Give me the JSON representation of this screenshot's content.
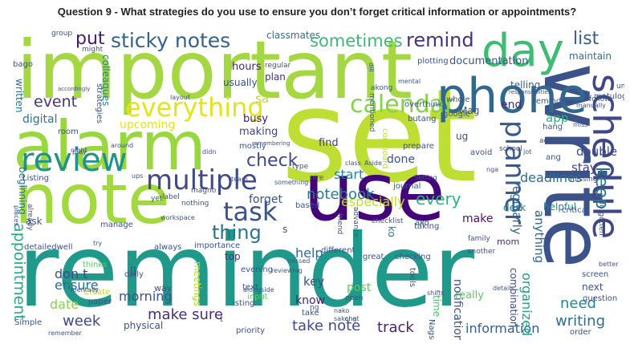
{
  "title": "Question 9 - What strategies do you use to ensure you don’t forget critical information or appointments?",
  "words": [
    {
      "text": "important",
      "color": "#a5d742"
    },
    {
      "text": "set",
      "color": "#bede33"
    },
    {
      "text": "reminder",
      "color": "#1f9a8a"
    },
    {
      "text": "alarm",
      "color": "#98d83e"
    },
    {
      "text": "note",
      "color": "#a2d93f"
    },
    {
      "text": "use",
      "color": "#44047a"
    },
    {
      "text": "write",
      "color": "#3b528b"
    },
    {
      "text": "phone",
      "color": "#31688e"
    },
    {
      "text": "schedule",
      "color": "#3f4788"
    },
    {
      "text": "day",
      "color": "#3fbc73"
    },
    {
      "text": "everything",
      "color": "#e4e41a"
    },
    {
      "text": "calendar",
      "color": "#83d34b"
    },
    {
      "text": "review",
      "color": "#21918c"
    },
    {
      "text": "multiple",
      "color": "#3e4989"
    },
    {
      "text": "task",
      "color": "#3a538b"
    },
    {
      "text": "planner",
      "color": "#38598c"
    },
    {
      "text": "sticky notes",
      "color": "#33638d"
    },
    {
      "text": "thing",
      "color": "#2c728e"
    },
    {
      "text": "remind",
      "color": "#46327e"
    },
    {
      "text": "sometimes",
      "color": "#3aba76"
    },
    {
      "text": "list",
      "color": "#355f8d"
    },
    {
      "text": "put",
      "color": "#48186a"
    },
    {
      "text": "event",
      "color": "#463480"
    },
    {
      "text": "check",
      "color": "#3e4a89"
    },
    {
      "text": "notebook",
      "color": "#287d8e"
    },
    {
      "text": "keep",
      "color": "#2a768e"
    },
    {
      "text": "every",
      "color": "#2db27d"
    },
    {
      "text": "appointment",
      "color": "#26ad81"
    },
    {
      "text": "make sure",
      "color": "#472d7b"
    },
    {
      "text": "take note",
      "color": "#3e4a89"
    },
    {
      "text": "week",
      "color": "#404688"
    },
    {
      "text": "help",
      "color": "#2f6b8e"
    },
    {
      "text": "don t",
      "color": "#3f4788"
    },
    {
      "text": "ensure",
      "color": "#2f6c8e"
    },
    {
      "text": "morning",
      "color": "#3b518b"
    },
    {
      "text": "date",
      "color": "#86d549"
    },
    {
      "text": "need",
      "color": "#23898e"
    },
    {
      "text": "writing",
      "color": "#2e6e8e"
    },
    {
      "text": "track",
      "color": "#481f70"
    },
    {
      "text": "information",
      "color": "#35608d"
    },
    {
      "text": "key",
      "color": "#3c4f8a"
    },
    {
      "text": "know",
      "color": "#482475"
    },
    {
      "text": "post",
      "color": "#5ec962"
    },
    {
      "text": "digital",
      "color": "#2a778e"
    },
    {
      "text": "upcoming",
      "color": "#e2e418"
    },
    {
      "text": "start",
      "color": "#24878e"
    },
    {
      "text": "deadlines",
      "color": "#2d708e"
    },
    {
      "text": "organized",
      "color": "#1fa287"
    },
    {
      "text": "regularly",
      "color": "#31678e"
    },
    {
      "text": "anything",
      "color": "#32658e"
    },
    {
      "text": "app",
      "color": "#29af7f"
    },
    {
      "text": "end",
      "color": "#472f7d"
    },
    {
      "text": "stay",
      "color": "#433e85"
    },
    {
      "text": "double",
      "color": "#3f4889"
    },
    {
      "text": "make",
      "color": "#481467"
    },
    {
      "text": "especially",
      "color": "#bddf26"
    },
    {
      "text": "done",
      "color": "#3b528b"
    },
    {
      "text": "forget",
      "color": "#3b518b"
    },
    {
      "text": "find",
      "color": "#443983"
    },
    {
      "text": "making",
      "color": "#414487"
    },
    {
      "text": "busy",
      "color": "#48186a"
    },
    {
      "text": "documentation",
      "color": "#3b528b"
    },
    {
      "text": "classmates",
      "color": "#2c728e"
    },
    {
      "text": "maintain",
      "color": "#2f6c8e"
    },
    {
      "text": "telling",
      "color": "#365d8d"
    },
    {
      "text": "hours",
      "color": "#482878"
    },
    {
      "text": "plan",
      "color": "#46307e"
    },
    {
      "text": "usually",
      "color": "#3c508b"
    },
    {
      "text": "colleagues",
      "color": "#26828e"
    },
    {
      "text": "written",
      "color": "#2c718e"
    },
    {
      "text": "notifications",
      "color": "#3b518b"
    },
    {
      "text": "combination",
      "color": "#3e4a89"
    },
    {
      "text": "desk",
      "color": "#2c728e"
    },
    {
      "text": "ko",
      "color": "#2e6f8e"
    },
    {
      "text": "time",
      "color": "#4ac16d"
    },
    {
      "text": "really",
      "color": "#5ec962"
    },
    {
      "text": "next",
      "color": "#3b528b"
    },
    {
      "text": "physical",
      "color": "#3b518b"
    },
    {
      "text": "meetings",
      "color": "#b5de2b"
    },
    {
      "text": "beginning",
      "color": "#2c728e"
    },
    {
      "text": "top",
      "color": "#472f7d"
    },
    {
      "text": "ll",
      "color": "#3e4989"
    },
    {
      "text": "ask",
      "color": "#3b528b"
    },
    {
      "text": "Mag",
      "color": "#3b528b"
    },
    {
      "text": "ug",
      "color": "#3b528b"
    },
    {
      "text": "helpful",
      "color": "#26828e"
    },
    {
      "text": "mom",
      "color": "#472d7b"
    },
    {
      "text": "sa",
      "color": "#b8de29"
    },
    {
      "text": "s",
      "color": "#3b528b"
    },
    {
      "text": "way",
      "color": "#3b528b"
    },
    {
      "text": "daily",
      "color": "#3b528b"
    },
    {
      "text": "manage",
      "color": "#3b528b"
    },
    {
      "text": "always",
      "color": "#3b528b"
    },
    {
      "text": "importance",
      "color": "#3b528b"
    },
    {
      "text": "detailedwell",
      "color": "#3b528b"
    },
    {
      "text": "thinks",
      "color": "#5ec962"
    },
    {
      "text": "question",
      "color": "#3b528b"
    },
    {
      "text": "screen",
      "color": "#3b528b"
    },
    {
      "text": "order",
      "color": "#3b528b"
    },
    {
      "text": "evening",
      "color": "#3b528b"
    },
    {
      "text": "checking",
      "color": "#3b528b"
    },
    {
      "text": "great",
      "color": "#3b528b"
    },
    {
      "text": "different",
      "color": "#3b528b"
    },
    {
      "text": "taking",
      "color": "#3b528b"
    },
    {
      "text": "tools",
      "color": "#3b528b"
    },
    {
      "text": "t",
      "color": "#3b528b"
    },
    {
      "text": "priority",
      "color": "#3b528b"
    },
    {
      "text": "isting",
      "color": "#3b528b"
    },
    {
      "text": "input",
      "color": "#5ec962"
    },
    {
      "text": "Create",
      "color": "#bddf26"
    },
    {
      "text": "Simple",
      "color": "#3b528b"
    },
    {
      "text": "paper",
      "color": "#3b528b"
    },
    {
      "text": "Listing",
      "color": "#3b528b"
    },
    {
      "text": "room",
      "color": "#3b528b"
    },
    {
      "text": "bago",
      "color": "#3b528b"
    },
    {
      "text": "strategies",
      "color": "#3b528b"
    },
    {
      "text": "group",
      "color": "#3b528b"
    },
    {
      "text": "might",
      "color": "#3b528b"
    },
    {
      "text": "regular",
      "color": "#3b528b"
    },
    {
      "text": "plotting",
      "color": "#3b528b"
    },
    {
      "text": "matulog",
      "color": "#3b528b"
    },
    {
      "text": "umaga",
      "color": "#3b528b"
    },
    {
      "text": "reminding",
      "color": "#3b528b"
    },
    {
      "text": "akong",
      "color": "#3b528b"
    },
    {
      "text": "mentioned",
      "color": "#3b528b"
    },
    {
      "text": "butang",
      "color": "#3b528b"
    },
    {
      "text": "overthink",
      "color": "#3b528b"
    },
    {
      "text": "whole",
      "color": "#3b528b"
    },
    {
      "text": "google",
      "color": "#3b528b"
    },
    {
      "text": "corkboard",
      "color": "#bddf26"
    },
    {
      "text": "prepare",
      "color": "#3b528b"
    },
    {
      "text": "journal",
      "color": "#3b528b"
    },
    {
      "text": "type",
      "color": "#3b528b"
    },
    {
      "text": "nire",
      "color": "#3b528b"
    },
    {
      "text": "based",
      "color": "#3b528b"
    },
    {
      "text": "friend",
      "color": "#3b528b"
    },
    {
      "text": "advance",
      "color": "#3b528b"
    },
    {
      "text": "ako",
      "color": "#3b528b"
    },
    {
      "text": "checklist",
      "color": "#3b528b"
    },
    {
      "text": "nothing",
      "color": "#3b528b"
    },
    {
      "text": "label",
      "color": "#3b528b"
    },
    {
      "text": "magno",
      "color": "#3b528b"
    },
    {
      "text": "workspace",
      "color": "#3b528b"
    },
    {
      "text": "yet",
      "color": "#3b528b"
    },
    {
      "text": "already",
      "color": "#3b528b"
    },
    {
      "text": "hang",
      "color": "#3b528b"
    },
    {
      "text": "ang",
      "color": "#3b528b"
    },
    {
      "text": "critical",
      "color": "#3b528b"
    },
    {
      "text": "missing",
      "color": "#3b528b"
    },
    {
      "text": "activate",
      "color": "#3b528b"
    },
    {
      "text": "forgotten",
      "color": "#3b528b"
    },
    {
      "text": "avoid",
      "color": "#3b528b"
    },
    {
      "text": "school",
      "color": "#3b528b"
    },
    {
      "text": "family",
      "color": "#3b528b"
    },
    {
      "text": "follow",
      "color": "#3b528b"
    },
    {
      "text": "another",
      "color": "#3b528b"
    },
    {
      "text": "details",
      "color": "#3b528b"
    },
    {
      "text": "text",
      "color": "#3b528b"
    },
    {
      "text": "take",
      "color": "#3b528b"
    },
    {
      "text": "alongside",
      "color": "#3b528b"
    },
    {
      "text": "reviewing",
      "color": "#3b528b"
    },
    {
      "text": "missed",
      "color": "#3b528b"
    },
    {
      "text": "Setting",
      "color": "#3b528b"
    },
    {
      "text": "Aside",
      "color": "#3b528b"
    },
    {
      "text": "class",
      "color": "#3b528b"
    },
    {
      "text": "jot",
      "color": "#3b528b"
    },
    {
      "text": "nga",
      "color": "#3b528b"
    },
    {
      "text": "shifts",
      "color": "#3b528b"
    },
    {
      "text": "open",
      "color": "#3b528b"
    },
    {
      "text": "ng",
      "color": "#3b528b"
    },
    {
      "text": "Nagse",
      "color": "#3b528b"
    },
    {
      "text": "chat",
      "color": "#3b528b"
    },
    {
      "text": "didn",
      "color": "#3b528b"
    },
    {
      "text": "team",
      "color": "#3b528b"
    },
    {
      "text": "ups",
      "color": "#3b528b"
    },
    {
      "text": "try",
      "color": "#3b528b"
    },
    {
      "text": "pray",
      "color": "#3b528b"
    },
    {
      "text": "night",
      "color": "#3b528b"
    },
    {
      "text": "around",
      "color": "#3b528b"
    },
    {
      "text": "layout",
      "color": "#3b528b"
    },
    {
      "text": "remembering",
      "color": "#3b528b"
    },
    {
      "text": "mostly",
      "color": "#3b528b"
    },
    {
      "text": "something",
      "color": "#3b528b"
    },
    {
      "text": "dili",
      "color": "#3b528b"
    },
    {
      "text": "mental",
      "color": "#3b528b"
    },
    {
      "text": "miss",
      "color": "#3b528b"
    },
    {
      "text": "responsibilities",
      "color": "#3b528b"
    },
    {
      "text": "manually",
      "color": "#3b528b"
    },
    {
      "text": "better",
      "color": "#3b528b"
    },
    {
      "text": "mentally",
      "color": "#3b528b"
    },
    {
      "text": "remember",
      "color": "#3b528b"
    },
    {
      "text": "places",
      "color": "#3b528b"
    },
    {
      "text": "accordingly",
      "color": "#3b528b"
    },
    {
      "text": "nako",
      "color": "#3b528b"
    },
    {
      "text": "sakong",
      "color": "#3b528b"
    },
    {
      "text": "phone",
      "color": "#3b528b"
    },
    {
      "text": "needed",
      "color": "#3b528b"
    },
    {
      "text": "write",
      "color": "#3b528b"
    }
  ]
}
